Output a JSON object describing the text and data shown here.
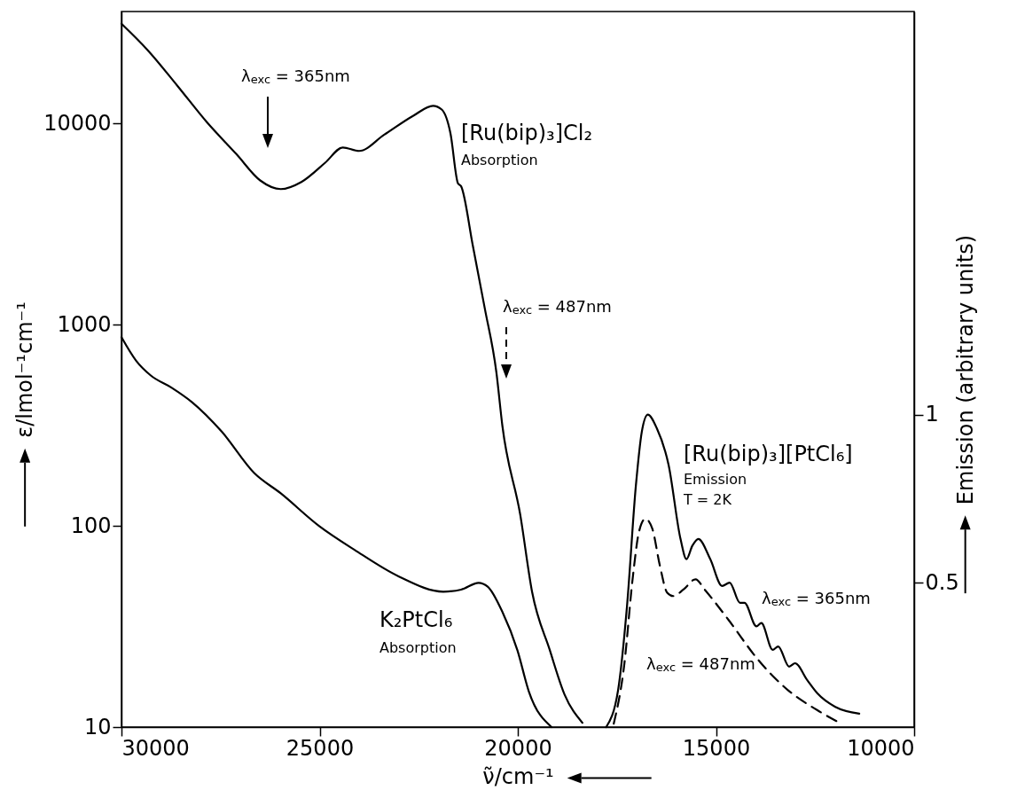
{
  "chart_data": {
    "type": "line",
    "xlabel": "ν̃/cm⁻¹",
    "ylabel": "ε/lmol⁻¹cm⁻¹",
    "y2label": "Emission (arbitrary units)",
    "xlim": [
      30000,
      10000
    ],
    "xticks": [
      30000,
      25000,
      20000,
      15000,
      10000
    ],
    "ylim": [
      10,
      36000
    ],
    "yticks": [
      10,
      100,
      1000,
      10000
    ],
    "log": true,
    "y2lim": [
      0.07,
      2.2
    ],
    "y2ticks": [
      0.5,
      1
    ],
    "series": [
      {
        "color": "#000000",
        "line_style": "solid",
        "x": [
          30000,
          29336,
          28590,
          27846,
          27100,
          26500,
          25980,
          25460,
          24860,
          24415,
          24005,
          23370,
          22625,
          22140,
          21920,
          21700,
          21510,
          21430,
          21135,
          20835,
          20540,
          20390,
          19940,
          19640,
          19195,
          18820,
          18370
        ],
        "values": [
          31300,
          23100,
          15400,
          10150,
          7040,
          5210,
          4720,
          5120,
          6380,
          7600,
          7300,
          8790,
          10960,
          12230,
          11730,
          8950,
          5040,
          4870,
          2470,
          1210,
          578,
          315,
          114,
          47,
          24.2,
          14.5,
          10.5
        ]
      },
      {
        "color": "#000000",
        "line_style": "solid",
        "x": [
          30000,
          29630,
          29260,
          28740,
          28220,
          27470,
          26650,
          25980,
          25010,
          24120,
          23000,
          21880,
          21430,
          20990,
          20760,
          20390,
          20010,
          19720,
          19150
        ],
        "values": [
          867,
          662,
          559,
          487,
          412,
          294,
          183,
          145,
          99.7,
          76,
          56,
          47.1,
          48.2,
          52.1,
          49.9,
          37.4,
          24.1,
          15,
          10
        ]
      },
      {
        "color": "#000000",
        "line_style": "solid",
        "axis": "y2",
        "x": [
          17770,
          17470,
          17245,
          17020,
          16870,
          16720,
          16495,
          16195,
          15895,
          15745,
          15595,
          15445,
          15145,
          14845,
          14655,
          14395,
          14280,
          13980,
          13855,
          13570,
          13430,
          13155,
          13005,
          12700,
          12440,
          11990,
          11385
        ],
        "values": [
          0.07,
          0.18,
          0.43,
          0.79,
          0.95,
          1.0,
          0.96,
          0.85,
          0.63,
          0.57,
          0.61,
          0.63,
          0.57,
          0.49,
          0.5,
          0.44,
          0.44,
          0.37,
          0.38,
          0.3,
          0.31,
          0.25,
          0.26,
          0.21,
          0.17,
          0.13,
          0.11
        ]
      },
      {
        "color": "#000000",
        "line_style": "dashed",
        "axis": "y2",
        "x": [
          17580,
          17320,
          17095,
          16945,
          16780,
          16605,
          16415,
          16230,
          16080,
          15815,
          15515,
          15290,
          14690,
          13935,
          13185,
          12440,
          11835
        ],
        "values": [
          0.08,
          0.25,
          0.52,
          0.65,
          0.69,
          0.66,
          0.55,
          0.47,
          0.46,
          0.48,
          0.51,
          0.48,
          0.39,
          0.27,
          0.18,
          0.12,
          0.08
        ]
      }
    ],
    "annotations": [
      "λ$_{exc}$ = 365nm",
      "λ$_{exc}$ = 487nm",
      "[Ru(bip)₃]Cl₂",
      "Absorption",
      "K₂PtCl₆",
      "Absorption",
      "[Ru(bip)₃][PtCl₆]",
      "Emission",
      "T = 2K",
      "λ$_{exc}$ = 365nm",
      "λ$_{exc}$ = 487nm"
    ]
  }
}
